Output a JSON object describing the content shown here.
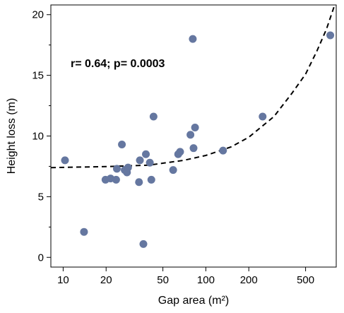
{
  "chart_data": {
    "type": "scatter",
    "title": "",
    "xlabel": "Gap area (m²)",
    "ylabel": "Height loss (m)",
    "x_scale": "log",
    "xlim": [
      8.2,
      820
    ],
    "ylim": [
      -0.8,
      20.8
    ],
    "x_ticks": [
      10,
      20,
      50,
      100,
      200,
      500
    ],
    "y_ticks": [
      0,
      5,
      10,
      15,
      20
    ],
    "annotation": "r= 0.64; p= 0.0003",
    "grid": false,
    "legend": "none",
    "point_color": "#6577a0",
    "fit_line_style": "dashed",
    "points": [
      {
        "x": 10.3,
        "y": 8.0
      },
      {
        "x": 14.0,
        "y": 2.1
      },
      {
        "x": 19.8,
        "y": 6.4
      },
      {
        "x": 21.5,
        "y": 6.5
      },
      {
        "x": 23.5,
        "y": 6.4
      },
      {
        "x": 23.8,
        "y": 7.3
      },
      {
        "x": 25.8,
        "y": 9.3
      },
      {
        "x": 27.0,
        "y": 7.2
      },
      {
        "x": 28.0,
        "y": 7.0
      },
      {
        "x": 28.5,
        "y": 7.4
      },
      {
        "x": 34.0,
        "y": 6.2
      },
      {
        "x": 34.5,
        "y": 8.0
      },
      {
        "x": 36.5,
        "y": 1.1
      },
      {
        "x": 38.0,
        "y": 8.5
      },
      {
        "x": 40.5,
        "y": 7.8
      },
      {
        "x": 41.5,
        "y": 6.4
      },
      {
        "x": 43.0,
        "y": 11.6
      },
      {
        "x": 59.0,
        "y": 7.2
      },
      {
        "x": 64.0,
        "y": 8.5
      },
      {
        "x": 66.0,
        "y": 8.7
      },
      {
        "x": 78.0,
        "y": 10.1
      },
      {
        "x": 81.0,
        "y": 18.0
      },
      {
        "x": 82.0,
        "y": 9.0
      },
      {
        "x": 84.0,
        "y": 10.7
      },
      {
        "x": 132.0,
        "y": 8.8
      },
      {
        "x": 250.0,
        "y": 11.6
      },
      {
        "x": 745.0,
        "y": 18.3
      }
    ],
    "fit_line": [
      {
        "x": 8.2,
        "y": 7.4
      },
      {
        "x": 20,
        "y": 7.48
      },
      {
        "x": 40,
        "y": 7.6
      },
      {
        "x": 70,
        "y": 8.0
      },
      {
        "x": 100,
        "y": 8.4
      },
      {
        "x": 150,
        "y": 9.1
      },
      {
        "x": 200,
        "y": 9.9
      },
      {
        "x": 300,
        "y": 11.6
      },
      {
        "x": 400,
        "y": 13.5
      },
      {
        "x": 500,
        "y": 15.1
      },
      {
        "x": 600,
        "y": 17.0
      },
      {
        "x": 700,
        "y": 18.8
      },
      {
        "x": 800,
        "y": 20.8
      }
    ]
  }
}
